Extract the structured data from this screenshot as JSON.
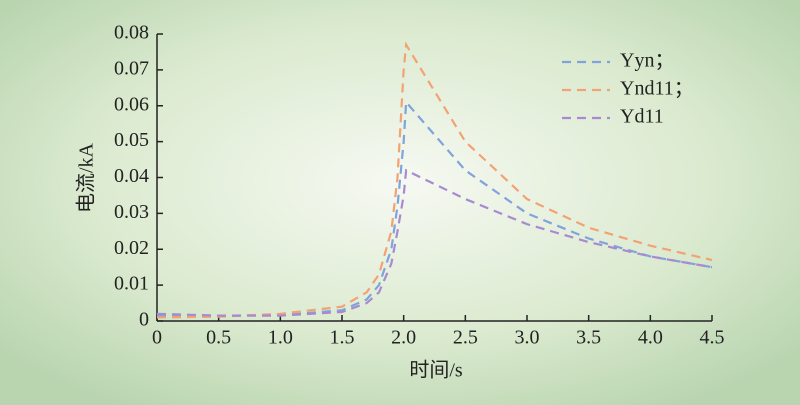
{
  "chart_data": {
    "type": "line",
    "x_label": "时间/s",
    "y_label": "电流/kA",
    "x": [
      0,
      0.5,
      1.0,
      1.5,
      1.7,
      1.8,
      1.9,
      1.95,
      2.0,
      2.02,
      2.5,
      3.0,
      3.5,
      4.0,
      4.5
    ],
    "series": [
      {
        "name": "Yyn；",
        "color": "#7fa3dc",
        "values": [
          0.0015,
          0.0015,
          0.0016,
          0.003,
          0.006,
          0.01,
          0.02,
          0.032,
          0.05,
          0.061,
          0.042,
          0.03,
          0.023,
          0.018,
          0.015
        ]
      },
      {
        "name": "Ynd11；",
        "color": "#f2a273",
        "values": [
          0.001,
          0.0012,
          0.002,
          0.004,
          0.008,
          0.013,
          0.025,
          0.04,
          0.07,
          0.077,
          0.05,
          0.034,
          0.026,
          0.021,
          0.017
        ]
      },
      {
        "name": "Yd11",
        "color": "#a88ad2",
        "values": [
          0.002,
          0.0015,
          0.0015,
          0.0025,
          0.005,
          0.008,
          0.016,
          0.025,
          0.035,
          0.042,
          0.034,
          0.027,
          0.022,
          0.018,
          0.015
        ]
      }
    ],
    "xlim": [
      0,
      4.5
    ],
    "xticks": [
      0,
      0.5,
      {
        "value": 1,
        "label": "1.0"
      },
      1.5,
      {
        "value": 2,
        "label": "2.0"
      },
      2.5,
      {
        "value": 3,
        "label": "3.0"
      },
      3.5,
      {
        "value": 4,
        "label": "4.0"
      },
      4.5
    ],
    "ylim": [
      0,
      0.08
    ],
    "yticks": [
      0,
      0.01,
      0.02,
      0.03,
      0.04,
      0.05,
      0.06,
      0.07,
      0.08
    ],
    "legend": "upper right",
    "line_style": "dashed"
  }
}
